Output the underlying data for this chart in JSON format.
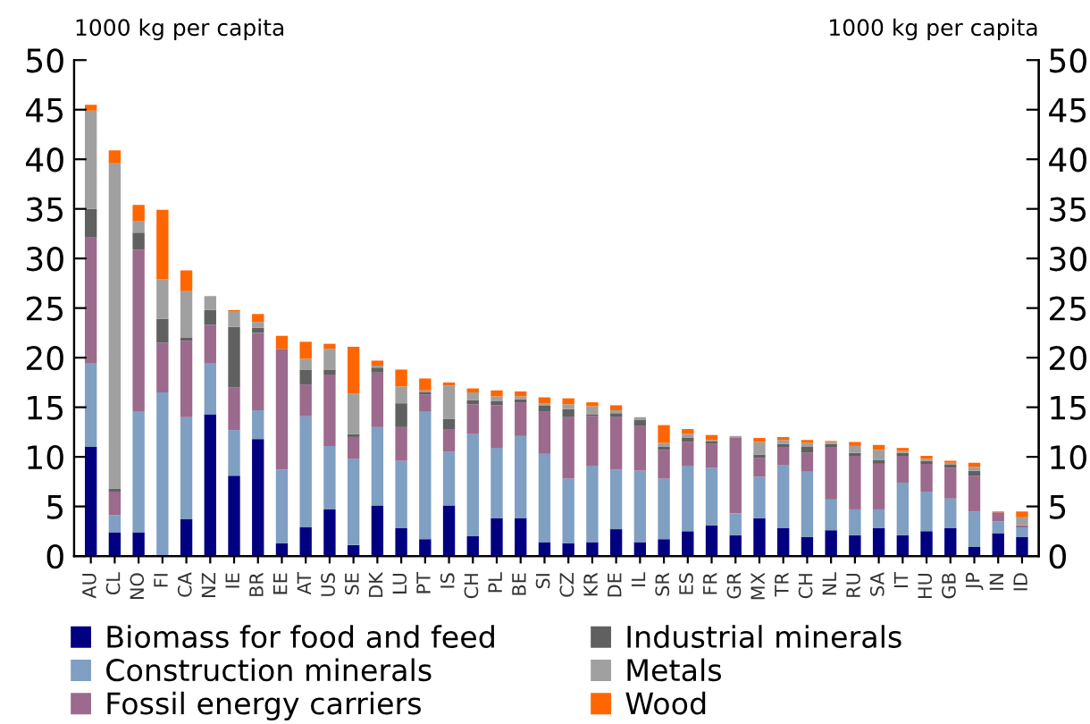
{
  "chart_data": {
    "type": "bar",
    "stacked": true,
    "ylabel": "1000 kg per capita",
    "y2label": "1000 kg per capita",
    "categories": [
      "AU",
      "CL",
      "NO",
      "FI",
      "CA",
      "NZ",
      "IE",
      "BR",
      "EE",
      "AT",
      "US",
      "SE",
      "DK",
      "LU",
      "PT",
      "IS",
      "CH",
      "PL",
      "BE",
      "SI",
      "CZ",
      "KR",
      "DE",
      "IL",
      "SR",
      "ES",
      "FR",
      "GR",
      "MX",
      "TR",
      "CH",
      "NL",
      "RU",
      "SA",
      "IT",
      "HU",
      "GB",
      "JP",
      "IN",
      "ID"
    ],
    "ylim": [
      0,
      50
    ],
    "yticks": [
      0,
      5,
      10,
      15,
      20,
      25,
      30,
      35,
      40,
      45,
      50
    ],
    "y2lim": [
      0,
      50
    ],
    "y2ticks": [
      0,
      5,
      10,
      15,
      20,
      25,
      30,
      35,
      40,
      45,
      50
    ],
    "grid": false,
    "legend": "bottom",
    "series": [
      {
        "name": "Biomass for food and feed",
        "color": "#000080",
        "values": [
          11.0,
          2.4,
          2.4,
          0,
          3.7,
          14.3,
          8.1,
          11.8,
          1.3,
          2.9,
          4.7,
          1.1,
          5.1,
          2.8,
          1.7,
          5.1,
          2.0,
          3.8,
          3.8,
          1.4,
          1.3,
          1.4,
          2.7,
          1.4,
          1.7,
          2.5,
          3.1,
          2.1,
          3.8,
          2.8,
          1.9,
          2.6,
          2.1,
          2.8,
          2.1,
          2.5,
          2.8,
          0.9,
          2.3,
          1.9
        ]
      },
      {
        "name": "Construction minerals",
        "color": "#7f9fc3",
        "values": [
          8.4,
          1.7,
          12.2,
          16.5,
          10.3,
          5.1,
          4.6,
          2.9,
          7.4,
          11.2,
          6.4,
          8.7,
          7.9,
          6.8,
          12.9,
          5.4,
          10.3,
          7.1,
          8.3,
          8.9,
          6.5,
          7.7,
          6.0,
          7.2,
          6.1,
          6.6,
          5.8,
          2.2,
          4.2,
          6.4,
          6.6,
          3.1,
          2.6,
          1.9,
          5.3,
          4.0,
          3.0,
          3.6,
          1.2,
          1.0
        ]
      },
      {
        "name": "Fossil energy carriers",
        "color": "#9c6a8c",
        "values": [
          12.7,
          2.4,
          16.3,
          5.0,
          7.7,
          3.9,
          4.3,
          7.8,
          12.2,
          3.2,
          7.2,
          2.2,
          5.5,
          3.4,
          1.7,
          2.3,
          3.0,
          4.3,
          3.4,
          4.3,
          6.2,
          5.0,
          5.3,
          4.5,
          2.9,
          2.4,
          2.4,
          7.6,
          1.9,
          1.8,
          1.9,
          5.3,
          5.4,
          4.6,
          2.7,
          2.8,
          3.1,
          3.6,
          0.9,
          0.2
        ]
      },
      {
        "name": "Industrial minerals",
        "color": "#606060",
        "values": [
          2.9,
          0.3,
          1.7,
          2.4,
          0.3,
          1.5,
          6.1,
          0.5,
          0,
          1.5,
          0.5,
          0.3,
          0.5,
          2.4,
          0.2,
          1.0,
          0.4,
          0.4,
          0.3,
          0.6,
          0.8,
          0.2,
          0.4,
          0.6,
          0.3,
          0.4,
          0.3,
          0,
          0.3,
          0.3,
          0.6,
          0.3,
          0.3,
          0.4,
          0.3,
          0.3,
          0.3,
          0.5,
          0,
          0
        ]
      },
      {
        "name": "Metals",
        "color": "#a0a0a0",
        "values": [
          9.9,
          32.8,
          1.2,
          4.0,
          4.7,
          1.4,
          1.6,
          0.6,
          0,
          1.1,
          2.1,
          4.1,
          0.2,
          1.7,
          0.2,
          3.4,
          0.8,
          0.5,
          0.3,
          0.2,
          0.5,
          0.8,
          0.3,
          0.3,
          0.4,
          0.4,
          0.1,
          0.2,
          1.3,
          0.4,
          0.4,
          0.2,
          0.7,
          1.0,
          0.2,
          0.2,
          0.2,
          0.4,
          0,
          0.8
        ]
      },
      {
        "name": "Wood",
        "color": "#ff6600",
        "values": [
          0.6,
          1.3,
          1.6,
          7.0,
          2.1,
          0,
          0.1,
          0.8,
          1.3,
          1.7,
          0.5,
          4.7,
          0.5,
          1.7,
          1.2,
          0.3,
          0.4,
          0.6,
          0.5,
          0.6,
          0.6,
          0.4,
          0.5,
          0,
          1.8,
          0.5,
          0.5,
          0,
          0.4,
          0.3,
          0.3,
          0.1,
          0.4,
          0.5,
          0.3,
          0.3,
          0.2,
          0.4,
          0.1,
          0.6
        ]
      }
    ]
  }
}
